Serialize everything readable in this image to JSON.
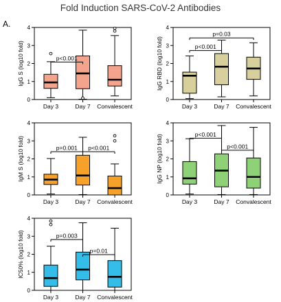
{
  "figure": {
    "title": "Fold Induction SARS-CoV-2 Antibodies",
    "panel_letter": "A."
  },
  "chart_data": [
    {
      "type": "boxplot",
      "ylabel": "IgG S (log10 fold)",
      "ylim": [
        0,
        4
      ],
      "yticks": [
        0,
        1,
        2,
        3,
        4
      ],
      "categories": [
        "Day 3",
        "Day 7",
        "Convalescent"
      ],
      "fill": "#f4a38d",
      "boxes": [
        {
          "min": 0.1,
          "q1": 0.62,
          "median": 0.95,
          "q3": 1.4,
          "max": 2.1,
          "outliers": [
            2.55
          ]
        },
        {
          "min": 0.02,
          "q1": 0.6,
          "median": 1.45,
          "q3": 2.42,
          "max": 3.85,
          "outliers": [
            0.08
          ]
        },
        {
          "min": 0.2,
          "q1": 0.75,
          "median": 1.1,
          "q3": 1.88,
          "max": 3.55,
          "outliers": [
            3.8,
            3.95
          ]
        }
      ],
      "comparisons": [
        {
          "from": 0,
          "to": 1,
          "y": 2.08,
          "label": "p<0.001"
        }
      ]
    },
    {
      "type": "boxplot",
      "ylabel": "IgG RBD (log10 fold)",
      "ylim": [
        0,
        4
      ],
      "yticks": [
        0,
        1,
        2,
        3,
        4
      ],
      "categories": [
        "Day 3",
        "Day 7",
        "Convalescent"
      ],
      "fill": "#d7d09c",
      "boxes": [
        {
          "min": 0.05,
          "q1": 0.35,
          "median": 1.32,
          "q3": 1.52,
          "max": 2.42,
          "outliers": []
        },
        {
          "min": 0.15,
          "q1": 0.82,
          "median": 1.82,
          "q3": 2.55,
          "max": 3.3,
          "outliers": []
        },
        {
          "min": 0.2,
          "q1": 1.12,
          "median": 1.72,
          "q3": 2.35,
          "max": 3.15,
          "outliers": []
        }
      ],
      "comparisons": [
        {
          "from": 0,
          "to": 1,
          "y": 2.72,
          "label": "p<0.001"
        },
        {
          "from": 0,
          "to": 2,
          "y": 3.42,
          "label": "p=0.03"
        }
      ]
    },
    {
      "type": "boxplot",
      "ylabel": "IgM S (log10 fold)",
      "ylim": [
        0,
        4
      ],
      "yticks": [
        0,
        1,
        2,
        3,
        4
      ],
      "categories": [
        "Day 3",
        "Day 7",
        "Convalescent"
      ],
      "fill": "#f6a12a",
      "boxes": [
        {
          "min": 0.05,
          "q1": 0.58,
          "median": 0.85,
          "q3": 1.15,
          "max": 2.02,
          "outliers": []
        },
        {
          "min": 0.02,
          "q1": 0.55,
          "median": 1.08,
          "q3": 2.2,
          "max": 3.2,
          "outliers": []
        },
        {
          "min": 0.0,
          "q1": 0.0,
          "median": 0.38,
          "q3": 1.05,
          "max": 1.72,
          "outliers": [
            3.0,
            3.28
          ]
        }
      ],
      "comparisons": [
        {
          "from": 0,
          "to": 1,
          "y": 2.4,
          "label": "p=0.001"
        },
        {
          "from": 1,
          "to": 2,
          "y": 2.4,
          "label": "p<0.001"
        }
      ]
    },
    {
      "type": "boxplot",
      "ylabel": "IgG NP (log10 fold)",
      "ylim": [
        0,
        4
      ],
      "yticks": [
        0,
        1,
        2,
        3,
        4
      ],
      "categories": [
        "Day 3",
        "Day 7",
        "Convalescent"
      ],
      "fill": "#8fd177",
      "boxes": [
        {
          "min": 0.05,
          "q1": 0.6,
          "median": 0.92,
          "q3": 1.85,
          "max": 3.12,
          "outliers": []
        },
        {
          "min": 0.02,
          "q1": 0.45,
          "median": 1.35,
          "q3": 2.28,
          "max": 3.85,
          "outliers": []
        },
        {
          "min": 0.02,
          "q1": 0.38,
          "median": 1.0,
          "q3": 2.05,
          "max": 3.75,
          "outliers": []
        }
      ],
      "comparisons": [
        {
          "from": 0,
          "to": 1,
          "y": 3.15,
          "label": "p<0.001"
        },
        {
          "from": 1,
          "to": 2,
          "y": 2.48,
          "label": "p<0.001"
        }
      ]
    },
    {
      "type": "boxplot",
      "ylabel": "IC50% (log10 fold)",
      "ylim": [
        0,
        4
      ],
      "yticks": [
        0,
        1,
        2,
        3,
        4
      ],
      "categories": [
        "Day 3",
        "Day 7",
        "Convalescent"
      ],
      "fill": "#35bde9",
      "boxes": [
        {
          "min": 0.0,
          "q1": 0.22,
          "median": 0.68,
          "q3": 1.4,
          "max": 2.45,
          "outliers": [
            3.65,
            3.85
          ]
        },
        {
          "min": 0.0,
          "q1": 0.58,
          "median": 1.15,
          "q3": 2.12,
          "max": 3.75,
          "outliers": []
        },
        {
          "min": 0.0,
          "q1": 0.18,
          "median": 0.75,
          "q3": 1.65,
          "max": 3.45,
          "outliers": []
        }
      ],
      "comparisons": [
        {
          "from": 0,
          "to": 1,
          "y": 2.82,
          "label": "p=0.003"
        },
        {
          "from": 1,
          "to": 2,
          "y": 1.98,
          "label": "p=0.01"
        }
      ]
    }
  ]
}
